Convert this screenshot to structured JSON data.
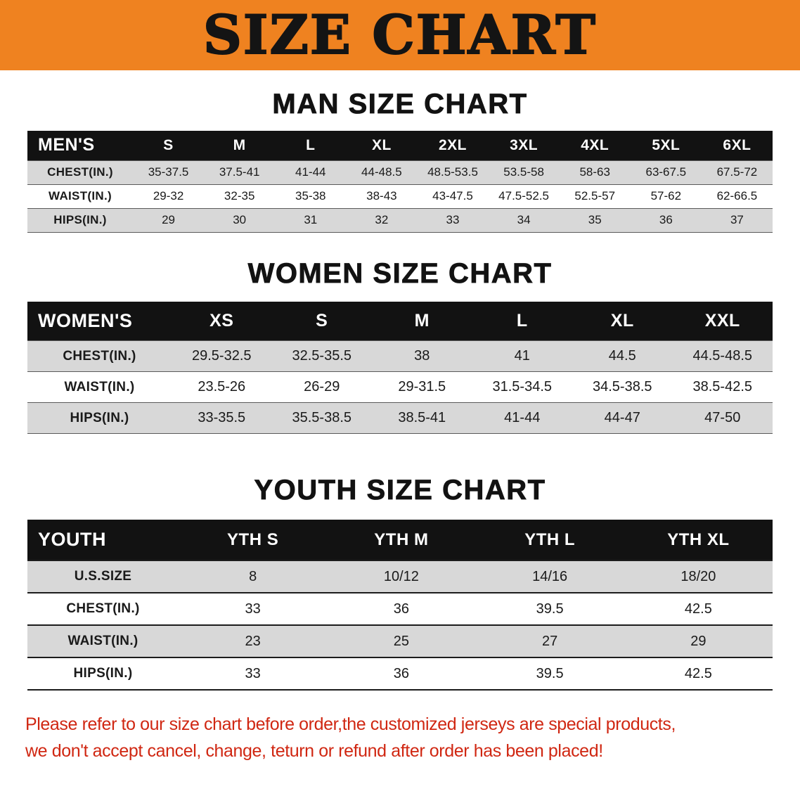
{
  "banner": {
    "title": "SIZE CHART"
  },
  "sections": [
    {
      "id": "men",
      "heading": "MAN SIZE CHART",
      "table": {
        "header": [
          "MEN'S",
          "S",
          "M",
          "L",
          "XL",
          "2XL",
          "3XL",
          "4XL",
          "5XL",
          "6XL"
        ],
        "rows": [
          [
            "CHEST(IN.)",
            "35-37.5",
            "37.5-41",
            "41-44",
            "44-48.5",
            "48.5-53.5",
            "53.5-58",
            "58-63",
            "63-67.5",
            "67.5-72"
          ],
          [
            "WAIST(IN.)",
            "29-32",
            "32-35",
            "35-38",
            "38-43",
            "43-47.5",
            "47.5-52.5",
            "52.5-57",
            "57-62",
            "62-66.5"
          ],
          [
            "HIPS(IN.)",
            "29",
            "30",
            "31",
            "32",
            "33",
            "34",
            "35",
            "36",
            "37"
          ]
        ]
      }
    },
    {
      "id": "women",
      "heading": "WOMEN SIZE CHART",
      "table": {
        "header": [
          "WOMEN'S",
          "XS",
          "S",
          "M",
          "L",
          "XL",
          "XXL"
        ],
        "rows": [
          [
            "CHEST(IN.)",
            "29.5-32.5",
            "32.5-35.5",
            "38",
            "41",
            "44.5",
            "44.5-48.5"
          ],
          [
            "WAIST(IN.)",
            "23.5-26",
            "26-29",
            "29-31.5",
            "31.5-34.5",
            "34.5-38.5",
            "38.5-42.5"
          ],
          [
            "HIPS(IN.)",
            "33-35.5",
            "35.5-38.5",
            "38.5-41",
            "41-44",
            "44-47",
            "47-50"
          ]
        ]
      }
    },
    {
      "id": "youth",
      "heading": "YOUTH SIZE CHART",
      "table": {
        "header": [
          "YOUTH",
          "YTH S",
          "YTH M",
          "YTH L",
          "YTH XL"
        ],
        "rows": [
          [
            "U.S.SIZE",
            "8",
            "10/12",
            "14/16",
            "18/20"
          ],
          [
            "CHEST(IN.)",
            "33",
            "36",
            "39.5",
            "42.5"
          ],
          [
            "WAIST(IN.)",
            "23",
            "25",
            "27",
            "29"
          ],
          [
            "HIPS(IN.)",
            "33",
            "36",
            "39.5",
            "42.5"
          ]
        ]
      }
    }
  ],
  "disclaimer": {
    "line1": "Please refer to our size chart before order,the customized jerseys are special products,",
    "line2": "we don't accept cancel, change, teturn or refund after order has been placed!"
  },
  "colors": {
    "banner_bg": "#ef8220",
    "header_bg": "#121212",
    "row_alt": "#d8d8d8",
    "red": "#d02712"
  }
}
